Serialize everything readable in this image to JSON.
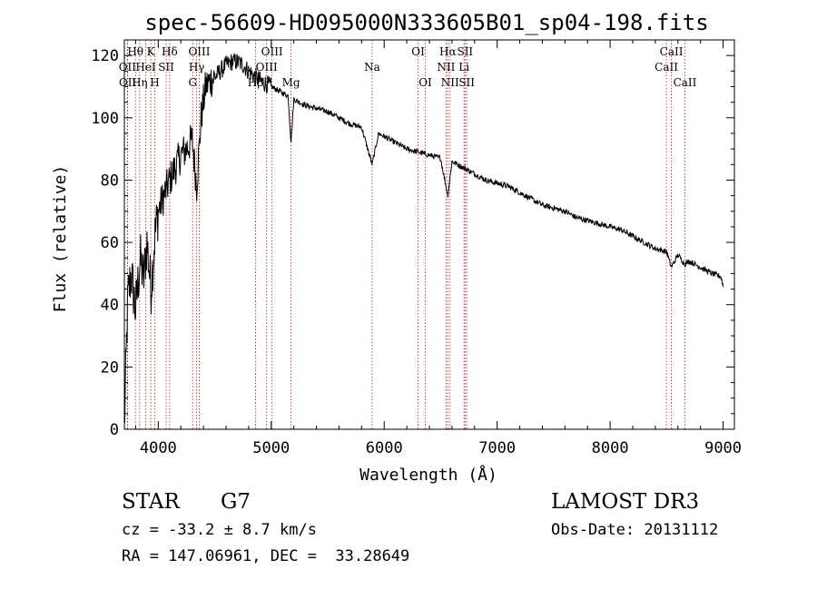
{
  "chart_data": {
    "type": "line",
    "title": "spec-56609-HD095000N333605B01_sp04-198.fits",
    "xlabel": "Wavelength (Å)",
    "ylabel": "Flux (relative)",
    "xlim": [
      3700,
      9100
    ],
    "ylim": [
      0,
      125
    ],
    "xticks": [
      4000,
      5000,
      6000,
      7000,
      8000,
      9000
    ],
    "yticks": [
      0,
      20,
      40,
      60,
      80,
      100,
      120
    ],
    "series": [
      {
        "name": "flux",
        "x": [
          3700,
          3730,
          3760,
          3800,
          3840,
          3870,
          3900,
          3935,
          3970,
          4000,
          4050,
          4101,
          4150,
          4200,
          4250,
          4300,
          4340,
          4380,
          4420,
          4460,
          4500,
          4550,
          4600,
          4650,
          4700,
          4750,
          4800,
          4861,
          4900,
          4950,
          5000,
          5050,
          5100,
          5150,
          5175,
          5200,
          5300,
          5400,
          5500,
          5600,
          5700,
          5800,
          5893,
          5950,
          6000,
          6100,
          6200,
          6300,
          6400,
          6500,
          6563,
          6600,
          6700,
          6800,
          6900,
          7000,
          7100,
          7200,
          7300,
          7400,
          7500,
          7600,
          7700,
          7800,
          7900,
          8000,
          8100,
          8200,
          8300,
          8400,
          8500,
          8542,
          8600,
          8662,
          8700,
          8800,
          8900,
          8980,
          9000
        ],
        "y": [
          0,
          42,
          50,
          38,
          55,
          48,
          60,
          45,
          62,
          70,
          75,
          80,
          84,
          88,
          90,
          93,
          78,
          100,
          110,
          112,
          113,
          115,
          117,
          118,
          118,
          117,
          115,
          113,
          112,
          111,
          110,
          109,
          108,
          107,
          92,
          106,
          104,
          103,
          102,
          100,
          98,
          97,
          85,
          95,
          94,
          92,
          90,
          89,
          88,
          87,
          75,
          86,
          84,
          82,
          80,
          79,
          78,
          76,
          74,
          72,
          71,
          70,
          68,
          67,
          66,
          65,
          64,
          62,
          60,
          58,
          57,
          52,
          56,
          53,
          54,
          52,
          50,
          49,
          46
        ]
      }
    ],
    "lines": [
      {
        "label": "Hθ",
        "x": 3798,
        "row": 0
      },
      {
        "label": "OII",
        "x": 3727,
        "row": 1
      },
      {
        "label": "OII",
        "x": 3729,
        "row": 2
      },
      {
        "label": "K",
        "x": 3934,
        "row": 0
      },
      {
        "label": "HeI",
        "x": 3889,
        "row": 1
      },
      {
        "label": "Hη",
        "x": 3835,
        "row": 2
      },
      {
        "label": "Hδ",
        "x": 4101,
        "row": 0
      },
      {
        "label": "SII",
        "x": 4070,
        "row": 1
      },
      {
        "label": "H",
        "x": 3969,
        "row": 2
      },
      {
        "label": "OIII",
        "x": 4363,
        "row": 0
      },
      {
        "label": "Hγ",
        "x": 4340,
        "row": 1
      },
      {
        "label": "G",
        "x": 4305,
        "row": 2
      },
      {
        "label": "OIII",
        "x": 5007,
        "row": 0
      },
      {
        "label": "OIII",
        "x": 4959,
        "row": 1
      },
      {
        "label": "Hβ",
        "x": 4861,
        "row": 2
      },
      {
        "label": "Mg",
        "x": 5175,
        "row": 2
      },
      {
        "label": "Na",
        "x": 5893,
        "row": 1
      },
      {
        "label": "OI",
        "x": 6300,
        "row": 0
      },
      {
        "label": "OI",
        "x": 6364,
        "row": 2
      },
      {
        "label": "Hα",
        "x": 6563,
        "row": 0
      },
      {
        "label": "NII",
        "x": 6548,
        "row": 1
      },
      {
        "label": "NII",
        "x": 6583,
        "row": 2
      },
      {
        "label": "SII",
        "x": 6716,
        "row": 0
      },
      {
        "label": "Li",
        "x": 6707,
        "row": 1
      },
      {
        "label": "SII",
        "x": 6731,
        "row": 2
      },
      {
        "label": "CaII",
        "x": 8542,
        "row": 0
      },
      {
        "label": "CaII",
        "x": 8498,
        "row": 1
      },
      {
        "label": "CaII",
        "x": 8662,
        "row": 2
      }
    ]
  },
  "info": {
    "class": "STAR",
    "subclass": "G7",
    "survey": "LAMOST DR3",
    "cz": "cz = -33.2 ± 8.7 km/s",
    "obs_date": "Obs-Date: 20131112",
    "coords": "RA = 147.06961, DEC =  33.28649"
  },
  "colors": {
    "spectrum": "#000000",
    "line_marker": "#b22222",
    "axes": "#000000",
    "background": "#ffffff"
  }
}
